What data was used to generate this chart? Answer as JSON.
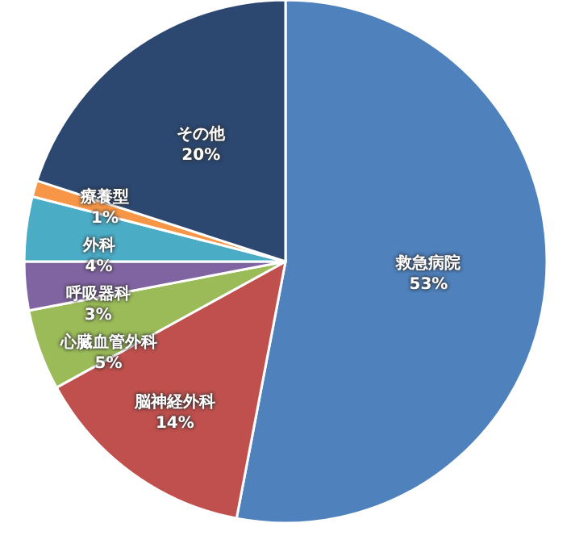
{
  "chart_data": {
    "type": "pie",
    "categories": [
      "救急病院",
      "脳神経外科",
      "心臓血管外科",
      "呼吸器科",
      "外科",
      "療養型",
      "その他"
    ],
    "values": [
      53,
      14,
      5,
      3,
      4,
      1,
      20
    ],
    "colors": [
      "#4f81bd",
      "#c0504d",
      "#9bbb59",
      "#8064a2",
      "#4bacc6",
      "#f79646",
      "#2c4770"
    ],
    "value_labels": [
      "53%",
      "14%",
      "5%",
      "3%",
      "4%",
      "1%",
      "20%"
    ]
  }
}
